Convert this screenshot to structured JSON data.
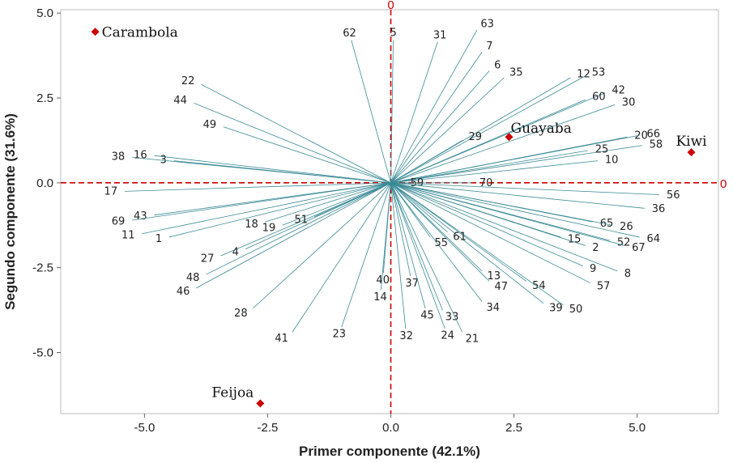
{
  "chart_data": {
    "type": "biplot",
    "xlabel": "Primer componente (42.1%)",
    "ylabel": "Segundo componente (31.6%)",
    "xlim": [
      -6.7,
      6.65
    ],
    "ylim": [
      -6.8,
      5.1
    ],
    "xticks": [
      -5.0,
      -2.5,
      0.0,
      2.5,
      5.0
    ],
    "xtick_labels": [
      "-5.0",
      "-2.5",
      "0.0",
      "2.5",
      "5.0"
    ],
    "yticks": [
      -5.0,
      -2.5,
      0.0,
      2.5,
      5.0
    ],
    "ytick_labels": [
      "-5.0",
      "-2.5",
      "0.0",
      "2.5",
      "5.0"
    ],
    "zero_line_label": "0",
    "colors": {
      "vector": "#3a8a96",
      "observation": "#cc0000",
      "zero_line": "#cc0000",
      "frame": "#bbbbbb"
    },
    "observations": [
      {
        "name": "Carambola",
        "x": -6.0,
        "y": 4.45
      },
      {
        "name": "Guayaba",
        "x": 2.4,
        "y": 1.35
      },
      {
        "name": "Kiwi",
        "x": 6.1,
        "y": 0.9
      },
      {
        "name": "Feijoa",
        "x": -2.65,
        "y": -6.5
      }
    ],
    "vectors": [
      {
        "label": "62",
        "x": -0.8,
        "y": 4.2
      },
      {
        "label": "5",
        "x": 0.05,
        "y": 4.2
      },
      {
        "label": "31",
        "x": 0.95,
        "y": 4.15
      },
      {
        "label": "63",
        "x": 1.75,
        "y": 4.5
      },
      {
        "label": "7",
        "x": 1.85,
        "y": 3.85
      },
      {
        "label": "6",
        "x": 2.0,
        "y": 3.3
      },
      {
        "label": "35",
        "x": 2.3,
        "y": 3.1
      },
      {
        "label": "12",
        "x": 3.65,
        "y": 3.1
      },
      {
        "label": "53",
        "x": 3.95,
        "y": 3.15
      },
      {
        "label": "42",
        "x": 4.35,
        "y": 2.65
      },
      {
        "label": "60",
        "x": 3.95,
        "y": 2.45
      },
      {
        "label": "30",
        "x": 4.55,
        "y": 2.3
      },
      {
        "label": "29",
        "x": 1.45,
        "y": 1.25
      },
      {
        "label": "20",
        "x": 4.8,
        "y": 1.35
      },
      {
        "label": "66",
        "x": 5.05,
        "y": 1.4
      },
      {
        "label": "58",
        "x": 5.1,
        "y": 1.1
      },
      {
        "label": "25",
        "x": 4.0,
        "y": 0.95
      },
      {
        "label": "10",
        "x": 4.2,
        "y": 0.65
      },
      {
        "label": "59",
        "x": 0.25,
        "y": 0.0
      },
      {
        "label": "70",
        "x": 1.65,
        "y": 0.0
      },
      {
        "label": "56",
        "x": 5.45,
        "y": -0.35
      },
      {
        "label": "36",
        "x": 5.15,
        "y": -0.75
      },
      {
        "label": "65",
        "x": 4.1,
        "y": -1.15
      },
      {
        "label": "26",
        "x": 4.5,
        "y": -1.25
      },
      {
        "label": "64",
        "x": 5.05,
        "y": -1.6
      },
      {
        "label": "52",
        "x": 4.45,
        "y": -1.7
      },
      {
        "label": "67",
        "x": 4.75,
        "y": -1.85
      },
      {
        "label": "15",
        "x": 3.45,
        "y": -1.6
      },
      {
        "label": "2",
        "x": 3.95,
        "y": -1.85
      },
      {
        "label": "9",
        "x": 3.9,
        "y": -2.45
      },
      {
        "label": "8",
        "x": 4.6,
        "y": -2.6
      },
      {
        "label": "57",
        "x": 4.05,
        "y": -2.95
      },
      {
        "label": "54",
        "x": 2.75,
        "y": -2.9
      },
      {
        "label": "39",
        "x": 3.1,
        "y": -3.55
      },
      {
        "label": "50",
        "x": 3.5,
        "y": -3.6
      },
      {
        "label": "13",
        "x": 1.85,
        "y": -2.6
      },
      {
        "label": "47",
        "x": 2.0,
        "y": -2.9
      },
      {
        "label": "34",
        "x": 1.85,
        "y": -3.5
      },
      {
        "label": "61",
        "x": 1.15,
        "y": -1.45
      },
      {
        "label": "55",
        "x": 0.8,
        "y": -1.6
      },
      {
        "label": "37",
        "x": 0.4,
        "y": -2.75
      },
      {
        "label": "40",
        "x": -0.15,
        "y": -2.65
      },
      {
        "label": "14",
        "x": -0.2,
        "y": -3.15
      },
      {
        "label": "45",
        "x": 0.7,
        "y": -3.7
      },
      {
        "label": "33",
        "x": 1.05,
        "y": -3.75
      },
      {
        "label": "32",
        "x": 0.3,
        "y": -4.3
      },
      {
        "label": "24",
        "x": 1.1,
        "y": -4.3
      },
      {
        "label": "21",
        "x": 1.45,
        "y": -4.4
      },
      {
        "label": "23",
        "x": -1.0,
        "y": -4.25
      },
      {
        "label": "41",
        "x": -2.0,
        "y": -4.4
      },
      {
        "label": "28",
        "x": -2.8,
        "y": -3.7
      },
      {
        "label": "46",
        "x": -3.95,
        "y": -3.1
      },
      {
        "label": "48",
        "x": -3.75,
        "y": -2.7
      },
      {
        "label": "27",
        "x": -3.45,
        "y": -2.15
      },
      {
        "label": "4",
        "x": -2.95,
        "y": -1.95
      },
      {
        "label": "18",
        "x": -2.55,
        "y": -1.15
      },
      {
        "label": "19",
        "x": -2.2,
        "y": -1.25
      },
      {
        "label": "51",
        "x": -1.55,
        "y": -1.0
      },
      {
        "label": "1",
        "x": -4.5,
        "y": -1.6
      },
      {
        "label": "11",
        "x": -5.05,
        "y": -1.5
      },
      {
        "label": "43",
        "x": -4.8,
        "y": -0.95
      },
      {
        "label": "69",
        "x": -5.25,
        "y": -1.1
      },
      {
        "label": "17",
        "x": -5.4,
        "y": -0.25
      },
      {
        "label": "3",
        "x": -4.4,
        "y": 0.65
      },
      {
        "label": "38",
        "x": -5.25,
        "y": 0.75
      },
      {
        "label": "16",
        "x": -4.8,
        "y": 0.8
      },
      {
        "label": "49",
        "x": -3.4,
        "y": 1.65
      },
      {
        "label": "22",
        "x": -3.85,
        "y": 2.9
      },
      {
        "label": "44",
        "x": -4.0,
        "y": 2.35
      }
    ]
  }
}
